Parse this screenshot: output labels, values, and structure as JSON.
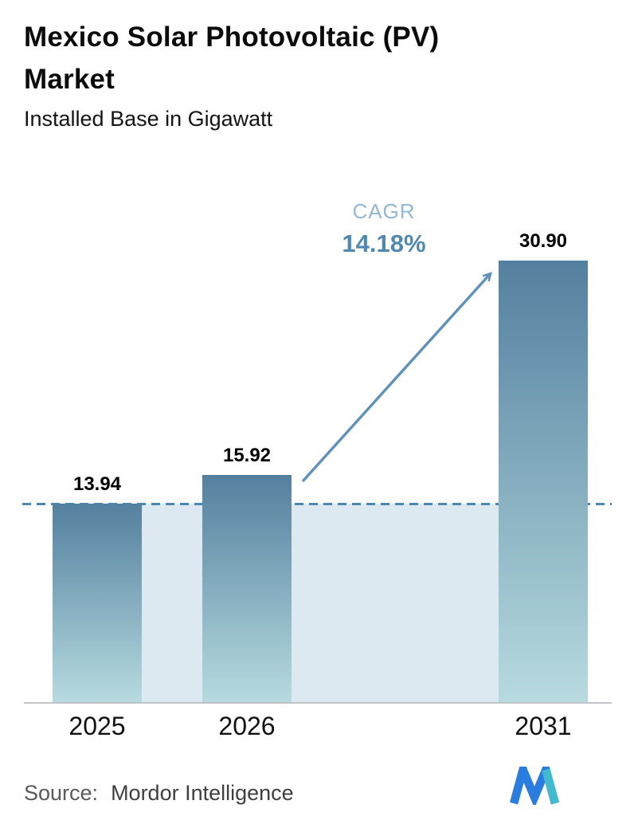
{
  "header": {
    "title": "Mexico Solar Photovoltaic (PV) Market",
    "subtitle": "Installed Base in Gigawatt"
  },
  "chart_data": {
    "type": "bar",
    "title": "Mexico Solar Photovoltaic (PV) Market",
    "subtitle": "Installed Base in Gigawatt",
    "unit": "Gigawatt",
    "xlabel": "",
    "ylabel": "",
    "categories": [
      "2025",
      "2026",
      "2031"
    ],
    "values": [
      13.94,
      15.92,
      30.9
    ],
    "value_labels": [
      "13.94",
      "15.92",
      "30.90"
    ],
    "ylim": [
      0,
      33
    ],
    "grid": false,
    "legend": "none",
    "annotations": {
      "cagr_label": "CAGR",
      "cagr_value": "14.18%",
      "arrow": "diagonal arrow from top of 2026 bar to top of 2031 bar",
      "reference_line_value": 13.94,
      "reference_area": "light shaded band below dashed line spanning from first bar to last bar"
    },
    "colors": {
      "bar_gradient_top": "#54809f",
      "bar_gradient_bottom": "#b7dbdf",
      "reference_line": "#4e87ad",
      "reference_area": "#dde9f1",
      "arrow": "#5f92b8",
      "cagr_label": "#94b8d3",
      "cagr_value": "#4f89b3",
      "axis_line": "#c0c4c8",
      "value_label_text": "#000000",
      "axis_label_text": "#111111"
    }
  },
  "footer": {
    "source_label": "Source:",
    "source_value": "Mordor Intelligence",
    "logo": "mordor-intelligence-logo",
    "logo_colors": {
      "primary": "#2b7ddd",
      "accent": "#43b9cf"
    }
  }
}
